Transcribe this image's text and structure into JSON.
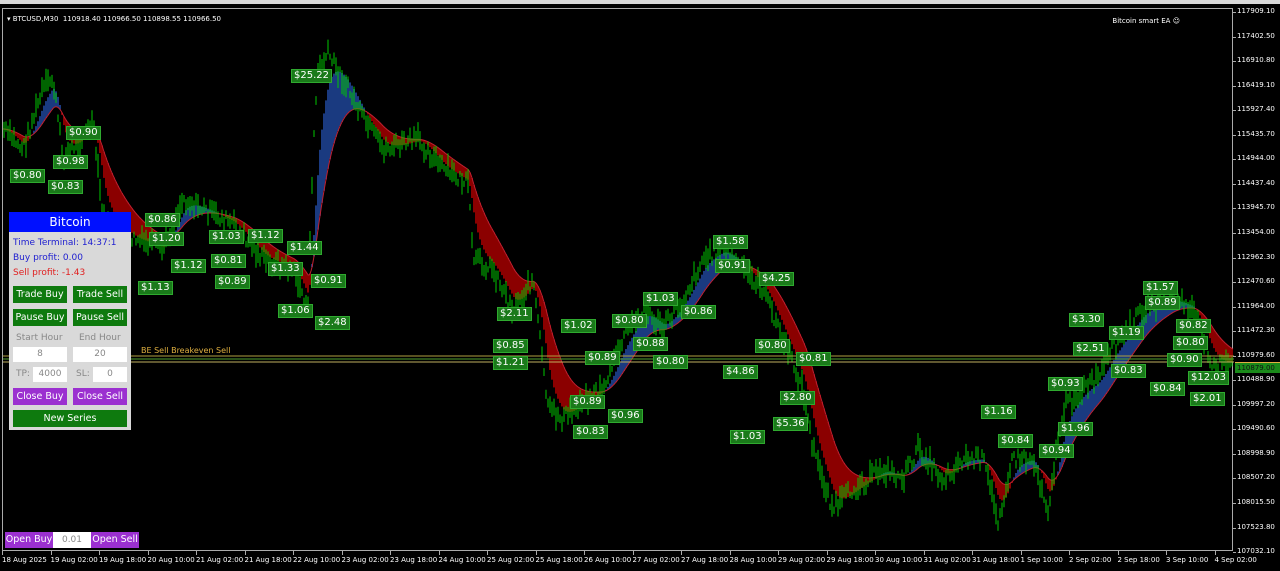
{
  "header": {
    "symbol": "BTCUSD,M30",
    "ohlc": "110918.40 110966.50 110898.55 110966.50",
    "ea_name": "Bitcoin smart EA",
    "ea_icon": "smiley-icon"
  },
  "price_axis": [
    "117909.10",
    "117402.50",
    "116910.80",
    "116419.10",
    "115927.40",
    "115435.70",
    "114944.00",
    "114437.40",
    "113945.70",
    "113454.00",
    "112962.30",
    "112470.60",
    "111964.00",
    "111472.30",
    "110979.60",
    "110488.90",
    "109997.20",
    "109490.60",
    "108998.90",
    "108507.20",
    "108015.50",
    "107523.80",
    "107032.10"
  ],
  "current_price": "110879.00",
  "time_axis": [
    "18 Aug 2025",
    "19 Aug 02:00",
    "19 Aug 18:00",
    "20 Aug 10:00",
    "21 Aug 02:00",
    "21 Aug 18:00",
    "22 Aug 10:00",
    "23 Aug 02:00",
    "23 Aug 18:00",
    "24 Aug 10:00",
    "25 Aug 02:00",
    "25 Aug 18:00",
    "26 Aug 10:00",
    "27 Aug 02:00",
    "27 Aug 18:00",
    "28 Aug 10:00",
    "29 Aug 02:00",
    "29 Aug 18:00",
    "30 Aug 10:00",
    "31 Aug 02:00",
    "31 Aug 18:00",
    "1 Sep 10:00",
    "2 Sep 02:00",
    "2 Sep 18:00",
    "3 Sep 10:00",
    "4 Sep 02:00"
  ],
  "profit_labels": [
    "$0.90",
    "$0.98",
    "$0.80",
    "$0.83",
    "$0.86",
    "$1.20",
    "$1.03",
    "$1.12",
    "$1.13",
    "$1.12",
    "$1.44",
    "$0.81",
    "$0.89",
    "$1.33",
    "$0.91",
    "$1.06",
    "$2.48",
    "$25.22",
    "$2.11",
    "$0.85",
    "$1.21",
    "$0.89",
    "$0.96",
    "$0.83",
    "$0.80",
    "$1.03",
    "$0.86",
    "$1.02",
    "$0.88",
    "$0.89",
    "$0.80",
    "$1.58",
    "$0.91",
    "$4.25",
    "$0.80",
    "$0.81",
    "$4.86",
    "$2.80",
    "$5.36",
    "$1.03",
    "$1.16",
    "$0.84",
    "$0.94",
    "$1.96",
    "$0.93",
    "$0.83",
    "$3.30",
    "$1.19",
    "$2.51",
    "$0.90",
    "$1.57",
    "$0.89",
    "$0.82",
    "$0.80",
    "$12.03",
    "$0.84",
    "$2.01"
  ],
  "order_lines": {
    "label": "BE Sell",
    "sublabel": "Breakeven Sell"
  },
  "panel": {
    "title": "Bitcoin",
    "time_terminal": "Time Terminal: 14:37:1",
    "buy_profit": "Buy profit: 0.00",
    "sell_profit": "Sell profit: -1.43",
    "trade_buy": "Trade Buy",
    "trade_sell": "Trade Sell",
    "pause_buy": "Pause Buy",
    "pause_sell": "Pause Sell",
    "start_hour_label": "Start Hour",
    "end_hour_label": "End Hour",
    "start_hour": "8",
    "end_hour": "20",
    "tp_label": "TP:",
    "tp": "4000",
    "sl_label": "SL:",
    "sl": "0",
    "close_buy": "Close Buy",
    "close_sell": "Close Sell",
    "new_series": "New Series"
  },
  "quick": {
    "open_buy": "Open Buy",
    "lot": "0.01",
    "open_sell": "Open Sell"
  },
  "colors": {
    "candles": "#00c800",
    "bear_band": "#8b0000",
    "bull_band": "#1a3a80",
    "panel_title": "#0010ff",
    "button_green": "#0e7a0e",
    "button_purple": "#9b30d0",
    "buy_text": "#2020d0",
    "sell_text": "#e02020"
  }
}
